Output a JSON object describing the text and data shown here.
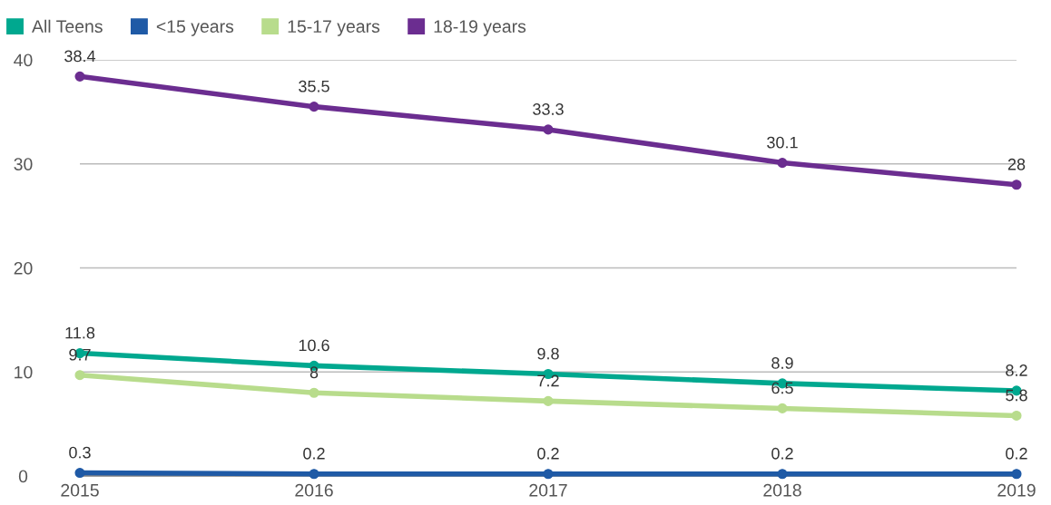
{
  "chart_data": {
    "type": "line",
    "categories": [
      "2015",
      "2016",
      "2017",
      "2018",
      "2019"
    ],
    "series": [
      {
        "name": "All Teens",
        "color": "#00a88f",
        "values": [
          11.8,
          10.6,
          9.8,
          8.9,
          8.2
        ]
      },
      {
        "name": "<15 years",
        "color": "#1f5aa6",
        "values": [
          0.3,
          0.2,
          0.2,
          0.2,
          0.2
        ]
      },
      {
        "name": "15-17 years",
        "color": "#b8dc8c",
        "values": [
          9.7,
          8,
          7.2,
          6.5,
          5.8
        ]
      },
      {
        "name": "18-19 years",
        "color": "#6b2d90",
        "values": [
          38.4,
          35.5,
          33.3,
          30.1,
          28
        ]
      }
    ],
    "ylim": [
      0,
      40
    ],
    "yticks": [
      0,
      10,
      20,
      30,
      40
    ],
    "grid": "y",
    "legend": "top left",
    "marker": "circle",
    "line_style": "solid",
    "data_labels": true
  }
}
